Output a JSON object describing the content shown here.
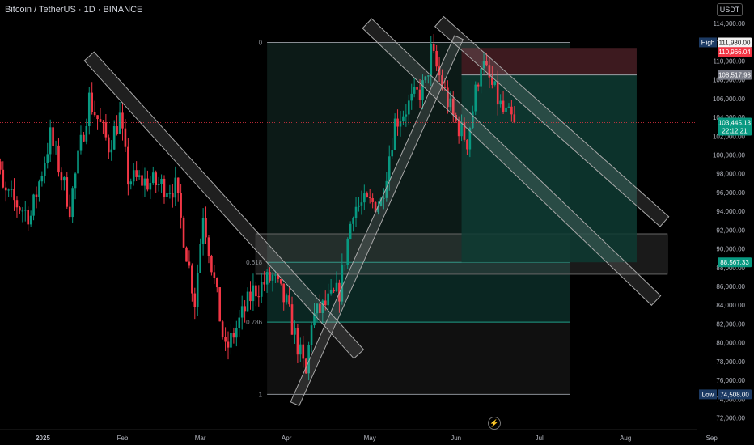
{
  "header": {
    "symbol_title": "Bitcoin / TetherUS · 1D · BINANCE",
    "currency_button": "USDT"
  },
  "colors": {
    "up": "#089981",
    "down": "#f23645",
    "background": "#000000",
    "price_line": "#f23645",
    "target_zone": "#0e3b33",
    "stop_zone": "#3d1a1f"
  },
  "icons": {
    "bolt": "lightning-icon"
  },
  "chart_data": {
    "type": "candlestick",
    "title": "",
    "xlabel": "",
    "ylabel": "",
    "ylim": [
      71000,
      114500
    ],
    "y_ticks": [
      72000,
      74000,
      76000,
      78000,
      80000,
      82000,
      84000,
      86000,
      88000,
      90000,
      92000,
      94000,
      96000,
      98000,
      100000,
      102000,
      104000,
      106000,
      108000,
      110000,
      112000,
      114000
    ],
    "y_tick_labels": [
      "72,000.00",
      "74,000.00",
      "76,000.00",
      "78,000.00",
      "80,000.00",
      "82,000.00",
      "84,000.00",
      "86,000.00",
      "88,000.00",
      "90,000.00",
      "92,000.00",
      "94,000.00",
      "96,000.00",
      "98,000.00",
      "100,000.00",
      "102,000.00",
      "104,000.00",
      "106,000.00",
      "108,000.00",
      "110,000.00",
      "112,000.00",
      "114,000.00"
    ],
    "x_labels": [
      {
        "label": "2025",
        "date": "2025-01-01"
      },
      {
        "label": "Feb",
        "date": "2025-02-01"
      },
      {
        "label": "Mar",
        "date": "2025-03-01"
      },
      {
        "label": "Apr",
        "date": "2025-04-01"
      },
      {
        "label": "May",
        "date": "2025-05-01"
      },
      {
        "label": "Jun",
        "date": "2025-06-01"
      },
      {
        "label": "Jul",
        "date": "2025-07-01"
      },
      {
        "label": "Aug",
        "date": "2025-08-01"
      },
      {
        "label": "Sep",
        "date": "2025-09-01"
      }
    ],
    "close_anchors": [
      {
        "date": "2024-12-15",
        "close": 104000
      },
      {
        "date": "2024-12-20",
        "close": 96000
      },
      {
        "date": "2024-12-30",
        "close": 93500
      },
      {
        "date": "2025-01-06",
        "close": 102000
      },
      {
        "date": "2025-01-13",
        "close": 94500
      },
      {
        "date": "2025-01-20",
        "close": 106000
      },
      {
        "date": "2025-01-27",
        "close": 101000
      },
      {
        "date": "2025-01-31",
        "close": 104000
      },
      {
        "date": "2025-02-03",
        "close": 97500
      },
      {
        "date": "2025-02-20",
        "close": 96500
      },
      {
        "date": "2025-02-27",
        "close": 84500
      },
      {
        "date": "2025-03-02",
        "close": 94000
      },
      {
        "date": "2025-03-10",
        "close": 79000
      },
      {
        "date": "2025-03-20",
        "close": 85500
      },
      {
        "date": "2025-03-27",
        "close": 87000
      },
      {
        "date": "2025-04-01",
        "close": 84000
      },
      {
        "date": "2025-04-08",
        "close": 76500
      },
      {
        "date": "2025-04-10",
        "close": 82500
      },
      {
        "date": "2025-04-20",
        "close": 85500
      },
      {
        "date": "2025-04-25",
        "close": 94500
      },
      {
        "date": "2025-05-05",
        "close": 95000
      },
      {
        "date": "2025-05-10",
        "close": 103500
      },
      {
        "date": "2025-05-21",
        "close": 107500
      },
      {
        "date": "2025-05-23",
        "close": 111000
      },
      {
        "date": "2025-05-31",
        "close": 104000
      },
      {
        "date": "2025-06-05",
        "close": 101500
      },
      {
        "date": "2025-06-10",
        "close": 110000
      },
      {
        "date": "2025-06-18",
        "close": 104500
      },
      {
        "date": "2025-06-22",
        "close": 103445
      }
    ],
    "current_price": {
      "value": 103445.13,
      "label": "103,445.13",
      "countdown": "22:12:21"
    },
    "price_tags": [
      {
        "name": "high",
        "value": 111980,
        "label_left": "High",
        "label": "111,980.00"
      },
      {
        "name": "stop",
        "value": 110966.04,
        "label": "110,966.04"
      },
      {
        "name": "entry",
        "value": 108517.98,
        "label": "108,517.98"
      },
      {
        "name": "target",
        "value": 88567.33,
        "label": "88,567.33"
      },
      {
        "name": "low",
        "value": 74508,
        "label_left": "Low",
        "label": "74,508.00"
      }
    ],
    "fib": {
      "start_date": "2025-03-25",
      "end_date": "2025-07-12",
      "levels": [
        {
          "label": "0",
          "value": 111980
        },
        {
          "label": "0.618",
          "value": 88567.33
        },
        {
          "label": "0.786",
          "value": 82200
        },
        {
          "label": "1",
          "value": 74508
        }
      ]
    },
    "support_box": {
      "start_date": "2025-03-21",
      "end_date": "2025-08-16",
      "top": 91600,
      "bottom": 87300
    },
    "position": {
      "start_date": "2025-06-03",
      "end_date": "2025-08-05",
      "stop": 110966.04,
      "entry": 108517.98,
      "target": 88567.33
    },
    "channels": [
      {
        "name": "jan-downtrend",
        "from": {
          "date": "2025-01-20",
          "value": 110500
        },
        "to": {
          "date": "2025-04-27",
          "value": 78800
        },
        "width": 1400
      },
      {
        "name": "may-downtrend-upper",
        "from": {
          "date": "2025-04-30",
          "value": 114000
        },
        "to": {
          "date": "2025-08-12",
          "value": 84500
        },
        "width": 1400
      },
      {
        "name": "june-downtrend",
        "from": {
          "date": "2025-05-26",
          "value": 114200
        },
        "to": {
          "date": "2025-08-15",
          "value": 92900
        },
        "width": 1400
      },
      {
        "name": "april-uptrend",
        "from": {
          "date": "2025-04-04",
          "value": 73500
        },
        "to": {
          "date": "2025-06-02",
          "value": 112500
        },
        "width": 1000
      }
    ]
  }
}
